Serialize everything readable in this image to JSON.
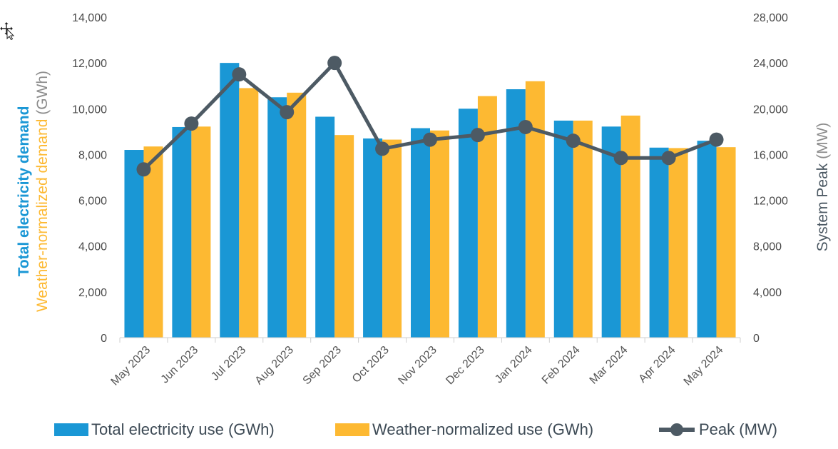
{
  "chart_data": {
    "type": "bar",
    "categories": [
      "May 2023",
      "Jun 2023",
      "Jul 2023",
      "Aug 2023",
      "Sep 2023",
      "Oct 2023",
      "Nov 2023",
      "Dec 2023",
      "Jan 2024",
      "Feb 2024",
      "Mar 2024",
      "Apr 2024",
      "May 2024"
    ],
    "series": [
      {
        "name": "Total electricity use (GWh)",
        "type": "bar",
        "axis": "left",
        "color": "#1a97d5",
        "values": [
          8200,
          9200,
          12000,
          10500,
          9650,
          8700,
          9150,
          10000,
          10850,
          9480,
          9220,
          8300,
          8600
        ]
      },
      {
        "name": "Weather-normalized use (GWh)",
        "type": "bar",
        "axis": "left",
        "color": "#fdb932",
        "values": [
          8350,
          9220,
          10900,
          10700,
          8850,
          8650,
          9050,
          10550,
          11200,
          9480,
          9700,
          8280,
          8320
        ]
      },
      {
        "name": "Peak (MW)",
        "type": "line",
        "axis": "right",
        "color": "#4d5a64",
        "values": [
          14700,
          18700,
          23000,
          19700,
          24000,
          16500,
          17300,
          17700,
          18400,
          17200,
          15700,
          15700,
          17300
        ]
      }
    ],
    "left_axis": {
      "title_parts": [
        {
          "text": "Total electricity demand",
          "color": "#1a97d5"
        },
        {
          "text": "Weather-normalized demand",
          "color": "#fdb932"
        },
        {
          "text": " (GWh)",
          "color": "#8c8c8c"
        }
      ],
      "ylim": [
        0,
        14000
      ],
      "ticks": [
        "0",
        "2,000",
        "4,000",
        "6,000",
        "8,000",
        "10,000",
        "12,000",
        "14,000"
      ]
    },
    "right_axis": {
      "title": "System Peak",
      "title_unit": " (MW)",
      "ylim": [
        0,
        28000
      ],
      "ticks": [
        "0",
        "4,000",
        "8,000",
        "12,000",
        "16,000",
        "20,000",
        "24,000",
        "28,000"
      ]
    },
    "grid": false,
    "legend_position": "bottom"
  }
}
